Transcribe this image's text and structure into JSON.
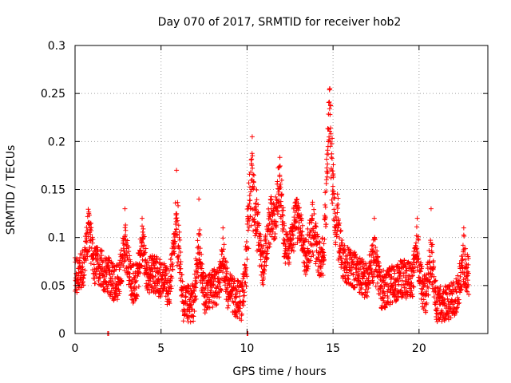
{
  "chart_data": {
    "type": "scatter",
    "title": "Day 070 of 2017, SRMTID for receiver hob2",
    "xlabel": "GPS time / hours",
    "ylabel": "SRMTID / TECUs",
    "xlim": [
      0,
      24
    ],
    "ylim": [
      0,
      0.3
    ],
    "grid": true,
    "marker": "+",
    "color": "#ff0000",
    "x_ticks": [
      0,
      5,
      10,
      15,
      20
    ],
    "x_tick_labels": [
      "0",
      "5",
      "10",
      "15",
      "20"
    ],
    "y_ticks": [
      0,
      0.05,
      0.1,
      0.15,
      0.2,
      0.25,
      0.3
    ],
    "y_tick_labels": [
      "0",
      "0.05",
      "0.1",
      "0.15",
      "0.2",
      "0.25",
      "0.3"
    ],
    "baseline": {
      "y": 0.05,
      "amplitude": 0.02
    },
    "bursts": [
      {
        "x": 0.8,
        "width": 0.3,
        "peak": 0.125
      },
      {
        "x": 2.9,
        "width": 0.4,
        "peak": 0.13
      },
      {
        "x": 3.9,
        "width": 0.3,
        "peak": 0.12
      },
      {
        "x": 5.9,
        "width": 0.4,
        "peak": 0.17
      },
      {
        "x": 7.2,
        "width": 0.3,
        "peak": 0.14
      },
      {
        "x": 8.6,
        "width": 0.3,
        "peak": 0.11
      },
      {
        "x": 10.3,
        "width": 0.6,
        "peak": 0.205
      },
      {
        "x": 11.4,
        "width": 0.5,
        "peak": 0.13
      },
      {
        "x": 11.9,
        "width": 0.3,
        "peak": 0.165
      },
      {
        "x": 12.9,
        "width": 0.5,
        "peak": 0.13
      },
      {
        "x": 13.8,
        "width": 0.4,
        "peak": 0.12
      },
      {
        "x": 14.8,
        "width": 0.35,
        "peak": 0.255
      },
      {
        "x": 15.3,
        "width": 0.3,
        "peak": 0.11
      },
      {
        "x": 17.4,
        "width": 0.4,
        "peak": 0.12
      },
      {
        "x": 19.9,
        "width": 0.3,
        "peak": 0.12
      },
      {
        "x": 20.7,
        "width": 0.3,
        "peak": 0.13
      },
      {
        "x": 22.6,
        "width": 0.4,
        "peak": 0.11
      }
    ],
    "points_per_hour": 120,
    "x_end": 22.9,
    "zero_points": [
      1.9,
      1.95,
      10.0,
      10.05
    ]
  }
}
